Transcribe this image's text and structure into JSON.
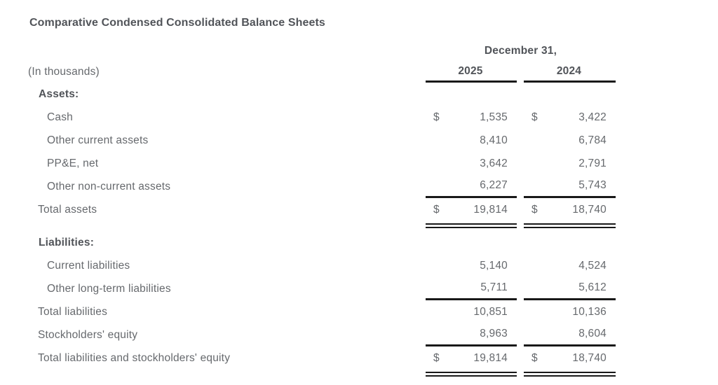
{
  "title": "Comparative Condensed Consolidated Balance Sheets",
  "colors": {
    "rule": "#191919",
    "text": "#66696d",
    "heading": "#515459",
    "background": "#ffffff"
  },
  "table": {
    "period_header": "December 31,",
    "units_label": "(In thousands)",
    "year_columns": [
      "2025",
      "2024"
    ],
    "rows": [
      {
        "kind": "section-heading",
        "label": "Assets:"
      },
      {
        "kind": "line-item",
        "label": "Cash",
        "currency_2025": "$",
        "value_2025": "1,535",
        "currency_2024": "$",
        "value_2024": "3,422"
      },
      {
        "kind": "line-item",
        "label": "Other current assets",
        "value_2025": "8,410",
        "value_2024": "6,784"
      },
      {
        "kind": "line-item",
        "label": "PP&E, net",
        "value_2025": "3,642",
        "value_2024": "2,791"
      },
      {
        "kind": "line-item-ruled",
        "label": "Other non-current assets",
        "value_2025": "6,227",
        "value_2024": "5,743"
      },
      {
        "kind": "total-double-ruled",
        "label": "Total assets",
        "currency_2025": "$",
        "value_2025": "19,814",
        "currency_2024": "$",
        "value_2024": "18,740"
      },
      {
        "kind": "section-heading",
        "label": "Liabilities:"
      },
      {
        "kind": "line-item",
        "label": "Current liabilities",
        "value_2025": "5,140",
        "value_2024": "4,524"
      },
      {
        "kind": "line-item-ruled",
        "label": "Other long-term liabilities",
        "value_2025": "5,711",
        "value_2024": "5,612"
      },
      {
        "kind": "total",
        "label": "Total liabilities",
        "value_2025": "10,851",
        "value_2024": "10,136"
      },
      {
        "kind": "line-item-ruled",
        "label": "Stockholders' equity",
        "value_2025": "8,963",
        "value_2024": "8,604"
      },
      {
        "kind": "total-double-ruled",
        "label": "Total liabilities and stockholders' equity",
        "currency_2025": "$",
        "value_2025": "19,814",
        "currency_2024": "$",
        "value_2024": "18,740"
      }
    ]
  }
}
